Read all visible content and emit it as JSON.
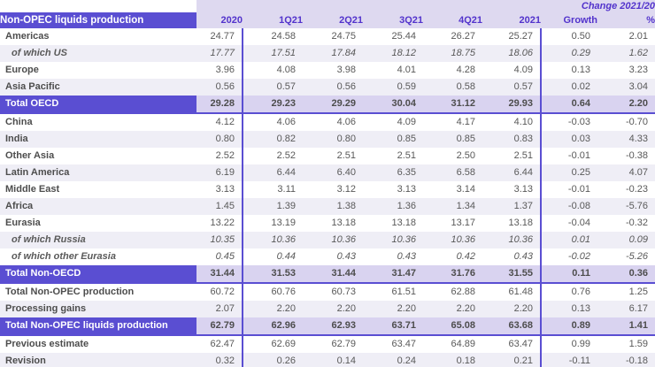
{
  "colors": {
    "accent_purple": "#5a4ed2",
    "header_text_purple": "#5233cc",
    "header_band_lavender": "#ded9f0",
    "subtotal_value_bg": "#d9d3f0",
    "row_stripe_bg": "#efeef6",
    "value_text_gray": "#595959",
    "label_text_gray": "#4d4d4d"
  },
  "table": {
    "title": "Non-OPEC liquids production",
    "change_header": "Change 2021/20",
    "columns": [
      "2020",
      "1Q21",
      "2Q21",
      "3Q21",
      "4Q21",
      "2021",
      "Growth",
      "%"
    ],
    "rows": [
      {
        "label": "Americas",
        "variant": "plain",
        "stripe": false,
        "rule": false,
        "values": [
          "24.77",
          "24.58",
          "24.75",
          "25.44",
          "26.27",
          "25.27",
          "0.50",
          "2.01"
        ]
      },
      {
        "label": "of which US",
        "variant": "italic",
        "stripe": true,
        "rule": false,
        "values": [
          "17.77",
          "17.51",
          "17.84",
          "18.12",
          "18.75",
          "18.06",
          "0.29",
          "1.62"
        ]
      },
      {
        "label": "Europe",
        "variant": "plain",
        "stripe": false,
        "rule": false,
        "values": [
          "3.96",
          "4.08",
          "3.98",
          "4.01",
          "4.28",
          "4.09",
          "0.13",
          "3.23"
        ]
      },
      {
        "label": "Asia Pacific",
        "variant": "plain",
        "stripe": true,
        "rule": false,
        "values": [
          "0.56",
          "0.57",
          "0.56",
          "0.59",
          "0.58",
          "0.57",
          "0.02",
          "3.04"
        ]
      },
      {
        "label": "Total OECD",
        "variant": "total",
        "stripe": false,
        "rule": true,
        "values": [
          "29.28",
          "29.23",
          "29.29",
          "30.04",
          "31.12",
          "29.93",
          "0.64",
          "2.20"
        ]
      },
      {
        "label": "China",
        "variant": "plain",
        "stripe": false,
        "rule": false,
        "values": [
          "4.12",
          "4.06",
          "4.06",
          "4.09",
          "4.17",
          "4.10",
          "-0.03",
          "-0.70"
        ]
      },
      {
        "label": "India",
        "variant": "plain",
        "stripe": true,
        "rule": false,
        "values": [
          "0.80",
          "0.82",
          "0.80",
          "0.85",
          "0.85",
          "0.83",
          "0.03",
          "4.33"
        ]
      },
      {
        "label": "Other Asia",
        "variant": "plain",
        "stripe": false,
        "rule": false,
        "values": [
          "2.52",
          "2.52",
          "2.51",
          "2.51",
          "2.50",
          "2.51",
          "-0.01",
          "-0.38"
        ]
      },
      {
        "label": "Latin America",
        "variant": "plain",
        "stripe": true,
        "rule": false,
        "values": [
          "6.19",
          "6.44",
          "6.40",
          "6.35",
          "6.58",
          "6.44",
          "0.25",
          "4.07"
        ]
      },
      {
        "label": "Middle East",
        "variant": "plain",
        "stripe": false,
        "rule": false,
        "values": [
          "3.13",
          "3.11",
          "3.12",
          "3.13",
          "3.14",
          "3.13",
          "-0.01",
          "-0.23"
        ]
      },
      {
        "label": "Africa",
        "variant": "plain",
        "stripe": true,
        "rule": false,
        "values": [
          "1.45",
          "1.39",
          "1.38",
          "1.36",
          "1.34",
          "1.37",
          "-0.08",
          "-5.76"
        ]
      },
      {
        "label": "Eurasia",
        "variant": "plain",
        "stripe": false,
        "rule": false,
        "values": [
          "13.22",
          "13.19",
          "13.18",
          "13.18",
          "13.17",
          "13.18",
          "-0.04",
          "-0.32"
        ]
      },
      {
        "label": "of which Russia",
        "variant": "italic",
        "stripe": true,
        "rule": false,
        "values": [
          "10.35",
          "10.36",
          "10.36",
          "10.36",
          "10.36",
          "10.36",
          "0.01",
          "0.09"
        ]
      },
      {
        "label": "of which other Eurasia",
        "variant": "italic",
        "stripe": false,
        "rule": false,
        "values": [
          "0.45",
          "0.44",
          "0.43",
          "0.43",
          "0.42",
          "0.43",
          "-0.02",
          "-5.26"
        ]
      },
      {
        "label": "Total Non-OECD",
        "variant": "total",
        "stripe": false,
        "rule": true,
        "values": [
          "31.44",
          "31.53",
          "31.44",
          "31.47",
          "31.76",
          "31.55",
          "0.11",
          "0.36"
        ]
      },
      {
        "label": "Total Non-OPEC production",
        "variant": "plain",
        "stripe": false,
        "rule": false,
        "values": [
          "60.72",
          "60.76",
          "60.73",
          "61.51",
          "62.88",
          "61.48",
          "0.76",
          "1.25"
        ]
      },
      {
        "label": "Processing gains",
        "variant": "plain",
        "stripe": true,
        "rule": false,
        "values": [
          "2.07",
          "2.20",
          "2.20",
          "2.20",
          "2.20",
          "2.20",
          "0.13",
          "6.17"
        ]
      },
      {
        "label": "Total Non-OPEC liquids production",
        "variant": "total",
        "stripe": false,
        "rule": true,
        "values": [
          "62.79",
          "62.96",
          "62.93",
          "63.71",
          "65.08",
          "63.68",
          "0.89",
          "1.41"
        ]
      },
      {
        "label": "Previous estimate",
        "variant": "plain",
        "stripe": false,
        "rule": false,
        "values": [
          "62.47",
          "62.69",
          "62.79",
          "63.47",
          "64.89",
          "63.47",
          "0.99",
          "1.59"
        ]
      },
      {
        "label": "Revision",
        "variant": "plain",
        "stripe": true,
        "rule": false,
        "values": [
          "0.32",
          "0.26",
          "0.14",
          "0.24",
          "0.18",
          "0.21",
          "-0.11",
          "-0.18"
        ]
      }
    ]
  }
}
